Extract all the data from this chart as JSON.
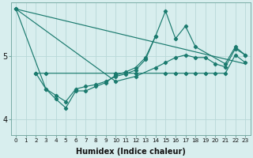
{
  "xlabel": "Humidex (Indice chaleur)",
  "background_color": "#d8eeee",
  "line_color": "#1a7a6e",
  "grid_color": "#b8d8d8",
  "xlim": [
    -0.5,
    23.5
  ],
  "ylim": [
    3.75,
    5.85
  ],
  "yticks": [
    4,
    5
  ],
  "xticks": [
    0,
    1,
    2,
    3,
    4,
    5,
    6,
    7,
    8,
    9,
    10,
    11,
    12,
    13,
    14,
    15,
    16,
    17,
    18,
    19,
    20,
    21,
    22,
    23
  ],
  "series1_x": [
    0,
    1,
    2
  ],
  "series1_y": [
    5.75,
    5.2,
    4.73
  ],
  "series2_x": [
    2,
    3,
    10,
    12,
    15,
    16,
    17,
    18,
    19,
    20,
    21,
    22,
    23
  ],
  "series2_y": [
    4.73,
    4.73,
    4.73,
    4.73,
    4.73,
    4.73,
    4.73,
    4.73,
    4.73,
    4.73,
    4.73,
    5.02,
    4.9
  ],
  "series3_x": [
    0,
    3,
    4,
    5,
    6,
    7,
    8,
    9,
    10,
    11,
    12,
    13,
    14,
    15,
    16,
    17,
    18,
    21,
    22,
    23
  ],
  "series3_y": [
    5.75,
    4.48,
    4.38,
    4.28,
    4.48,
    4.52,
    4.55,
    4.6,
    4.68,
    4.72,
    4.78,
    4.95,
    5.32,
    5.72,
    5.28,
    5.48,
    5.15,
    4.88,
    5.15,
    5.02
  ],
  "series4_x": [
    2,
    3,
    4,
    5,
    6,
    7,
    8,
    9,
    10,
    11,
    12,
    13,
    14
  ],
  "series4_y": [
    4.73,
    4.48,
    4.32,
    4.18,
    4.45,
    4.45,
    4.52,
    4.58,
    4.7,
    4.75,
    4.82,
    4.98,
    5.32
  ],
  "series5_x": [
    0,
    10,
    12,
    14,
    15,
    16,
    17,
    18,
    19,
    20,
    21,
    22,
    23
  ],
  "series5_y": [
    5.75,
    4.6,
    4.68,
    4.82,
    4.9,
    4.98,
    5.02,
    4.98,
    4.98,
    4.88,
    4.83,
    5.12,
    5.02
  ]
}
